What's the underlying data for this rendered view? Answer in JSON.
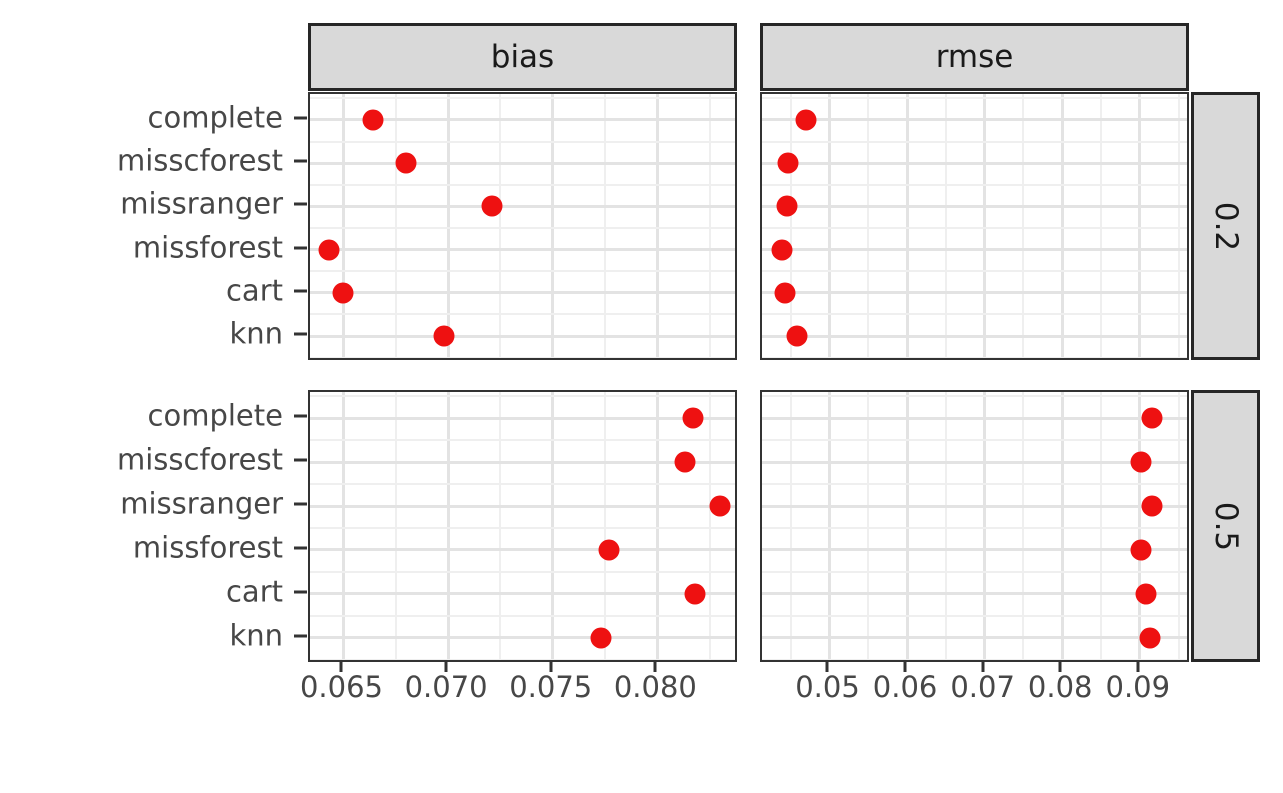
{
  "figure": {
    "background": "#FFFFFF",
    "strip_background": "#D9D9D9",
    "strip_border": "#262626",
    "panel_border": "#333333",
    "grid_major_color": "#E3E3E3",
    "grid_minor_color": "#EFEFEF",
    "axis_text_color": "#474747",
    "point_color": "#EE1111"
  },
  "chart_data": {
    "type": "scatter",
    "title": "",
    "xlabel": "",
    "ylabel": "",
    "legend": "none",
    "grid": true,
    "facets": {
      "columns": [
        "bias",
        "rmse"
      ],
      "rows": [
        "0.2",
        "0.5"
      ]
    },
    "categories": [
      "complete",
      "misscforest",
      "missranger",
      "missforest",
      "cart",
      "knn"
    ],
    "panels": [
      {
        "column": "bias",
        "row": "0.2",
        "values": [
          0.0664,
          0.068,
          0.0721,
          0.0643,
          0.065,
          0.0698
        ]
      },
      {
        "column": "rmse",
        "row": "0.2",
        "values": [
          0.047,
          0.0446,
          0.0445,
          0.0439,
          0.0443,
          0.0458
        ]
      },
      {
        "column": "bias",
        "row": "0.5",
        "values": [
          0.0817,
          0.0813,
          0.083,
          0.0777,
          0.0818,
          0.0773
        ]
      },
      {
        "column": "rmse",
        "row": "0.5",
        "values": [
          0.0916,
          0.0902,
          0.0916,
          0.0902,
          0.0908,
          0.0913
        ]
      }
    ],
    "x_axes": {
      "bias": {
        "range": [
          0.0634,
          0.0839
        ],
        "ticks": [
          0.065,
          0.07,
          0.075,
          0.08
        ],
        "tick_labels": [
          "0.065",
          "0.070",
          "0.075",
          "0.080"
        ],
        "minor_breaks": [
          0.0675,
          0.0725,
          0.0775,
          0.0825
        ]
      },
      "rmse": {
        "range": [
          0.0413,
          0.0966
        ],
        "ticks": [
          0.05,
          0.06,
          0.07,
          0.08,
          0.09
        ],
        "tick_labels": [
          "0.05",
          "0.06",
          "0.07",
          "0.08",
          "0.09"
        ],
        "minor_breaks": [
          0.045,
          0.055,
          0.065,
          0.075,
          0.085,
          0.095
        ]
      }
    }
  }
}
